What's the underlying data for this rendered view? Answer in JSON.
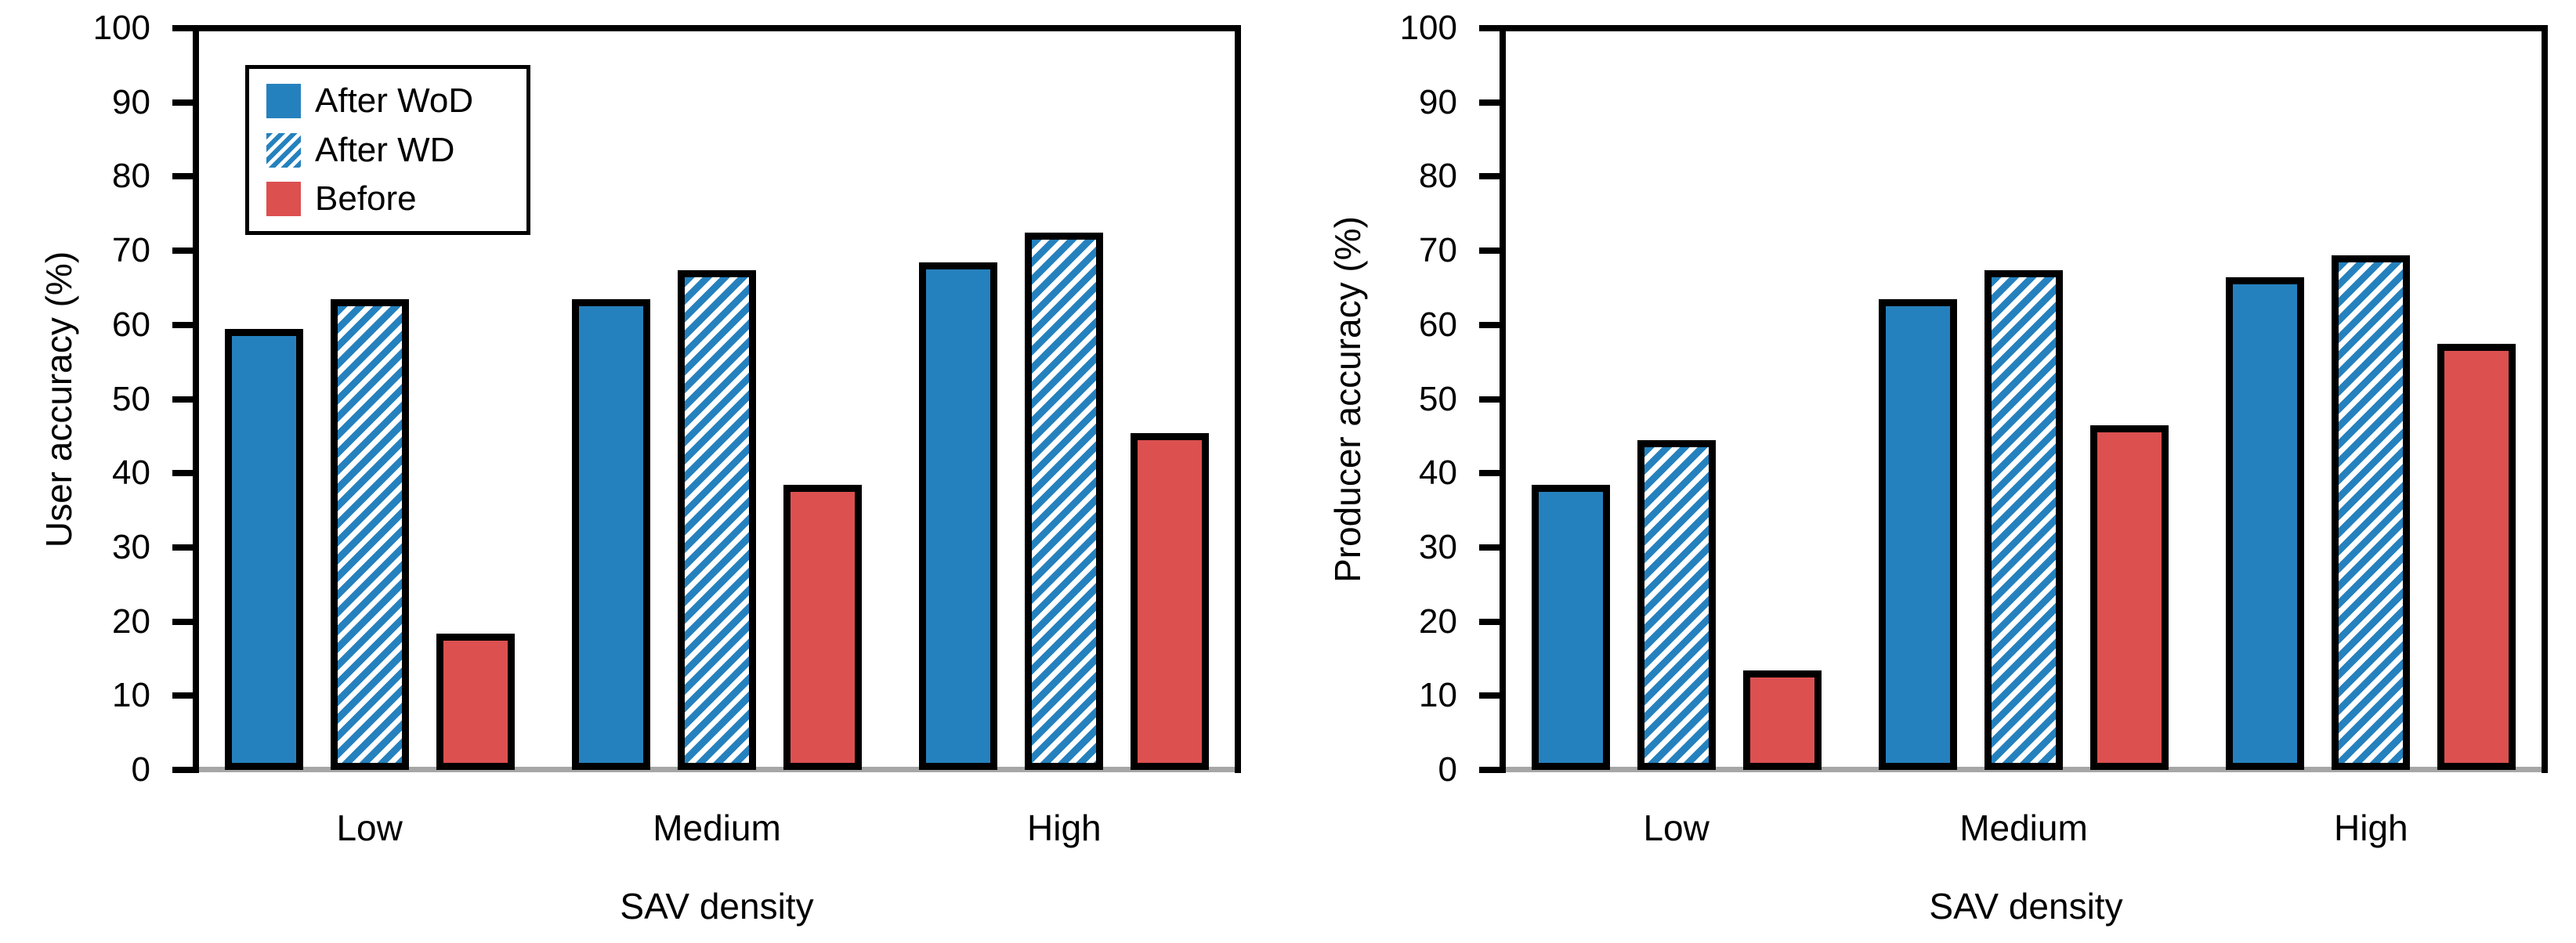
{
  "page": {
    "background": "#FFFFFF"
  },
  "colors": {
    "blue": "#2581BE",
    "red": "#DC5050",
    "stripe_white": "#FFFFFF",
    "baseline_gray": "#A6A6A6",
    "frame_black": "#000000",
    "text": "#000000"
  },
  "legend": {
    "items": [
      {
        "label": "After WoD",
        "swatch": "solid-blue"
      },
      {
        "label": "After WD",
        "swatch": "hatch-blue"
      },
      {
        "label": "Before",
        "swatch": "solid-red"
      }
    ]
  },
  "chart_data": [
    {
      "type": "bar",
      "title": "",
      "ylabel": "User accuracy (%)",
      "xlabel": "SAV density",
      "categories": [
        "Low",
        "Medium",
        "High"
      ],
      "series": [
        {
          "name": "After WoD",
          "style": "solid-blue",
          "values": [
            59,
            63,
            68
          ]
        },
        {
          "name": "After WD",
          "style": "hatch-blue",
          "values": [
            63,
            67,
            72
          ]
        },
        {
          "name": "Before",
          "style": "solid-red",
          "values": [
            18,
            38,
            45
          ]
        }
      ],
      "ylim": [
        0,
        100
      ],
      "ytick_step": 10,
      "grid": false,
      "has_legend": true,
      "legend_position": "upper-left"
    },
    {
      "type": "bar",
      "title": "",
      "ylabel": "Producer accuracy (%)",
      "xlabel": "SAV density",
      "categories": [
        "Low",
        "Medium",
        "High"
      ],
      "series": [
        {
          "name": "After WoD",
          "style": "solid-blue",
          "values": [
            38,
            63,
            66
          ]
        },
        {
          "name": "After WD",
          "style": "hatch-blue",
          "values": [
            44,
            67,
            69
          ]
        },
        {
          "name": "Before",
          "style": "solid-red",
          "values": [
            13,
            46,
            57
          ]
        }
      ],
      "ylim": [
        0,
        100
      ],
      "ytick_step": 10,
      "grid": false,
      "has_legend": false
    }
  ]
}
